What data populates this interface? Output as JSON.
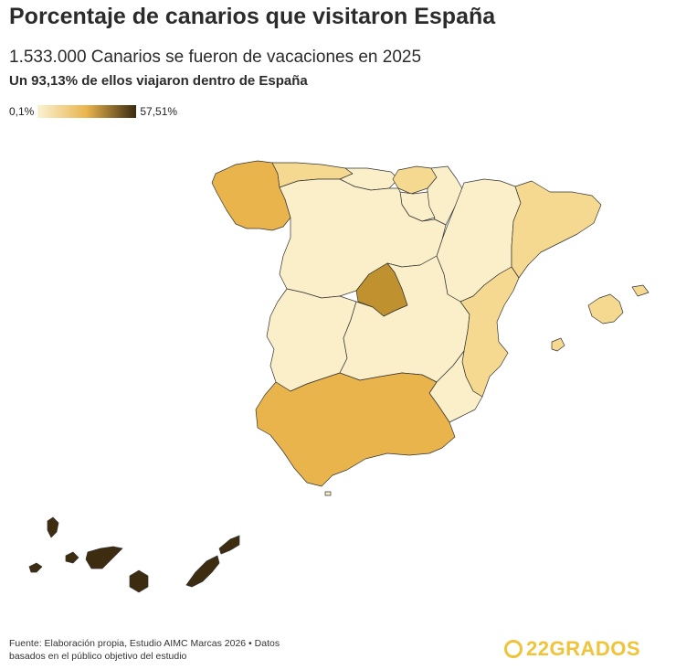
{
  "header": {
    "title": "Porcentaje de canarios que visitaron España",
    "subtitle": "1.533.000 Canarios se fueron de vacaciones en 2025",
    "highlight": "Un 93,13% de ellos viajaron dentro de España"
  },
  "legend": {
    "min_label": "0,1%",
    "max_label": "57,51%",
    "color_low": "#fbf2d2",
    "color_mid": "#e9b44c",
    "color_high": "#3a2a10"
  },
  "colors": {
    "very_light": "#faefc9",
    "light": "#f5d990",
    "medium": "#e9b44c",
    "dark_gold": "#c0912f",
    "darkest": "#3d2c10",
    "outline": "#333333"
  },
  "footer": {
    "source": "Fuente: Elaboración propia, Estudio AIMC Marcas 2026 • Datos basados en el público objetivo del estudio"
  },
  "brand": {
    "name": "22GRADOS"
  }
}
